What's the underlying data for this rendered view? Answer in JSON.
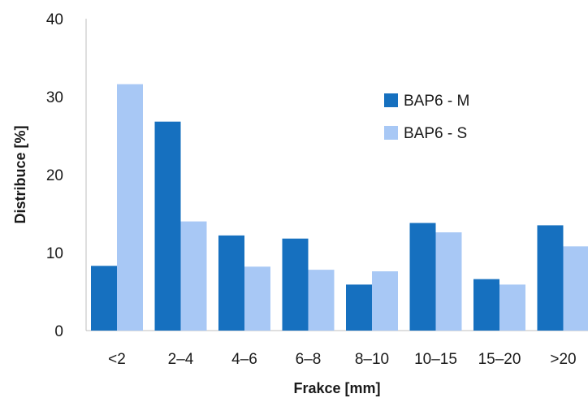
{
  "chart_data": {
    "type": "bar",
    "title": "",
    "xlabel": "Frakce [mm]",
    "ylabel": "Distribuce [%]",
    "ylim": [
      0,
      40
    ],
    "yticks": [
      "0",
      "10",
      "20",
      "30",
      "40"
    ],
    "categories": [
      "<2",
      "2–4",
      "4–6",
      "6–8",
      "8–10",
      "10–15",
      "15–20",
      ">20"
    ],
    "grid": false,
    "legend_position": "top-right",
    "series": [
      {
        "name": "BAP6 - M",
        "color": "#1670bf",
        "values": [
          8.3,
          26.8,
          12.2,
          11.8,
          5.9,
          13.8,
          6.6,
          13.5
        ]
      },
      {
        "name": "BAP6 - S",
        "color": "#a8c8f5",
        "values": [
          31.6,
          14.0,
          8.2,
          7.8,
          7.6,
          12.6,
          5.9,
          10.8
        ]
      }
    ]
  }
}
